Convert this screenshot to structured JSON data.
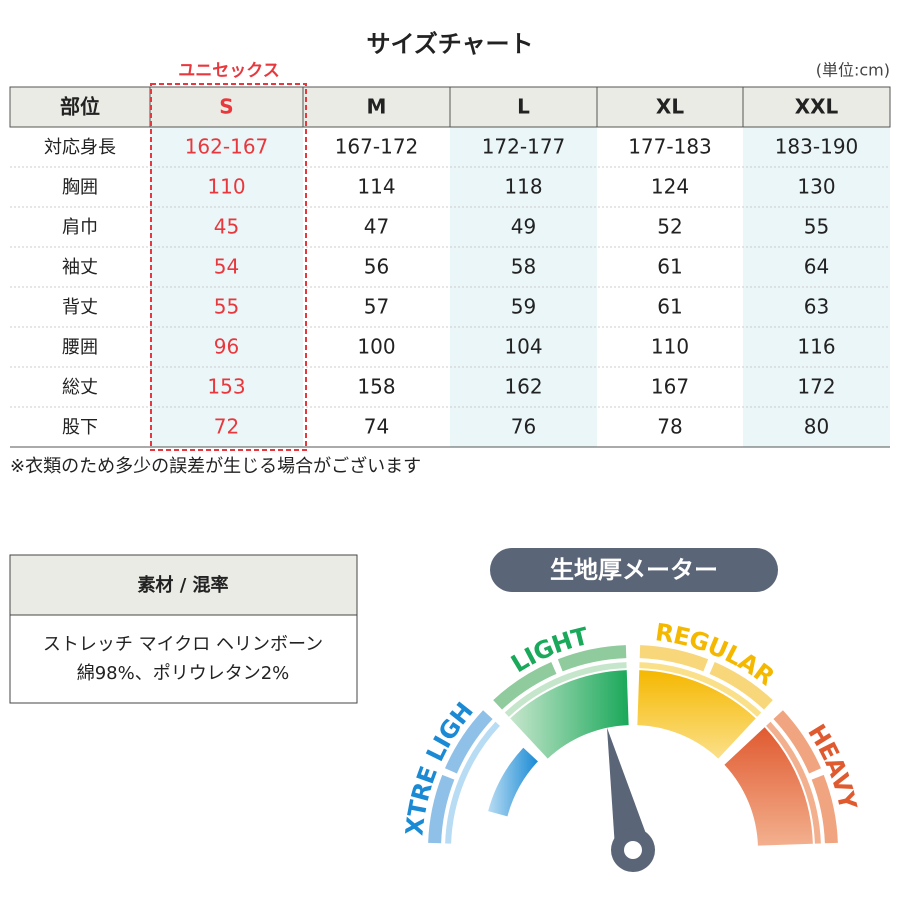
{
  "title": "サイズチャート",
  "unit": "(単位:cm)",
  "unisex_label": "ユニセックス",
  "table": {
    "header": [
      "部位",
      "S",
      "M",
      "L",
      "XL",
      "XXL"
    ],
    "rows": [
      [
        "対応身長",
        "162-167",
        "167-172",
        "172-177",
        "177-183",
        "183-190"
      ],
      [
        "胸囲",
        "110",
        "114",
        "118",
        "124",
        "130"
      ],
      [
        "肩巾",
        "45",
        "47",
        "49",
        "52",
        "55"
      ],
      [
        "袖丈",
        "54",
        "56",
        "58",
        "61",
        "64"
      ],
      [
        "背丈",
        "55",
        "57",
        "59",
        "61",
        "63"
      ],
      [
        "腰囲",
        "96",
        "100",
        "104",
        "110",
        "116"
      ],
      [
        "総丈",
        "153",
        "158",
        "162",
        "167",
        "172"
      ],
      [
        "股下",
        "72",
        "74",
        "76",
        "78",
        "80"
      ]
    ]
  },
  "note": "※衣類のため多少の誤差が生じる場合がございます",
  "material": {
    "header": "素材 / 混率",
    "lines": [
      "ストレッチ マイクロ ヘリンボーン",
      "綿98%、ポリウレタン2%"
    ]
  },
  "gauge": {
    "title": "生地厚メーター",
    "labels": [
      "EXTRE LIGHT",
      "LIGHT",
      "REGULAR",
      "HEAVY"
    ]
  }
}
